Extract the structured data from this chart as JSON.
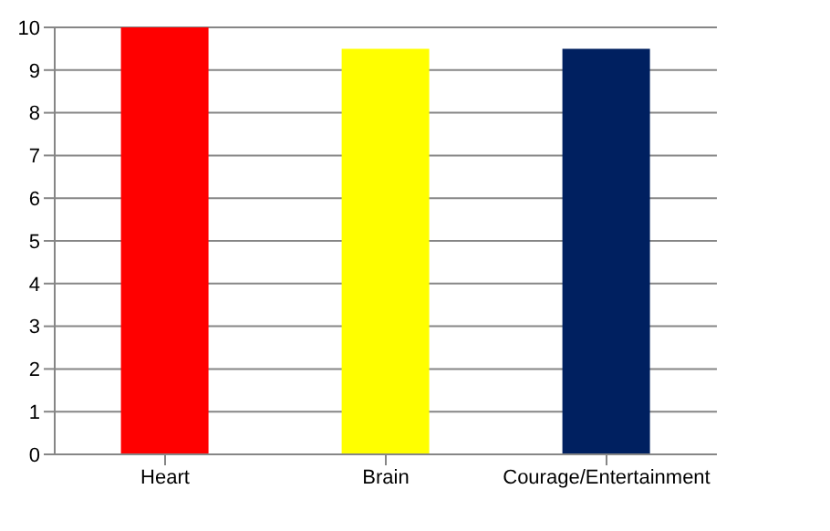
{
  "chart_data": {
    "type": "bar",
    "categories": [
      "Heart",
      "Brain",
      "Courage/Entertainment"
    ],
    "values": [
      10,
      9.5,
      9.5
    ],
    "colors": [
      "#ff0000",
      "#ffff00",
      "#002060"
    ],
    "ylim": [
      0,
      10
    ],
    "yticks": [
      0,
      1,
      2,
      3,
      4,
      5,
      6,
      7,
      8,
      9,
      10
    ],
    "grid": "y",
    "legend": false
  }
}
